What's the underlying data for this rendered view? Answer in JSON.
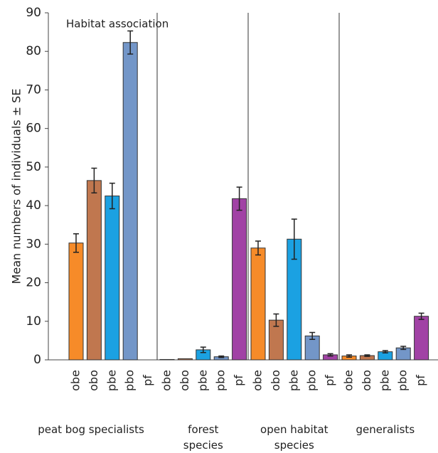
{
  "chart_data": {
    "type": "bar",
    "y_label": "Mean numbers of individuals ± SE",
    "annotation": "Habitat association",
    "groups": [
      "peat bog specialists",
      "forest species",
      "open habitat species",
      "generalists"
    ],
    "series": [
      {
        "name": "obe",
        "color": "#f68b29",
        "values": [
          30.3,
          0.1,
          29,
          1
        ],
        "errors": [
          2.4,
          0,
          1.8,
          0.3
        ]
      },
      {
        "name": "obo",
        "color": "#c0774f",
        "values": [
          46.5,
          0.3,
          10.3,
          1.1
        ],
        "errors": [
          3.2,
          0,
          1.6,
          0.2
        ]
      },
      {
        "name": "pbe",
        "color": "#1ba1e2",
        "values": [
          42.5,
          2.6,
          31.3,
          2.1
        ],
        "errors": [
          3.3,
          0.7,
          5.2,
          0.3
        ]
      },
      {
        "name": "pbo",
        "color": "#7396c8",
        "values": [
          82.3,
          0.8,
          6.2,
          3.1
        ],
        "errors": [
          3.0,
          0.2,
          0.9,
          0.4
        ]
      },
      {
        "name": "pf",
        "color": "#a142a5",
        "values": [
          0,
          41.8,
          1.3,
          11.3
        ],
        "errors": [
          0,
          3.0,
          0.3,
          0.8
        ]
      }
    ],
    "ylim": [
      0,
      90
    ],
    "yticks": [
      0,
      10,
      20,
      30,
      40,
      50,
      60,
      70,
      80,
      90
    ]
  }
}
